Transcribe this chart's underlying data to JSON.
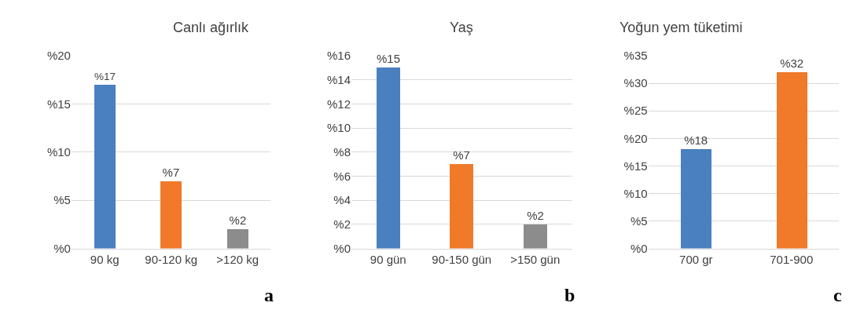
{
  "chart_data": [
    {
      "type": "bar",
      "title": "Canlı ağırlık",
      "categories": [
        "90 kg",
        "90-120 kg",
        ">120 kg"
      ],
      "values": [
        17,
        7,
        2
      ],
      "colors": [
        "#4a7fc0",
        "#f07a2a",
        "#8c8c8c"
      ],
      "value_labels": [
        "%17",
        "%7",
        "%2"
      ],
      "ylim": [
        0,
        20
      ],
      "yticks": [
        {
          "value": 0,
          "label": "%0"
        },
        {
          "value": 5,
          "label": "%5"
        },
        {
          "value": 10,
          "label": "%10"
        },
        {
          "value": 15,
          "label": "%15"
        },
        {
          "value": 20,
          "label": "%20"
        }
      ],
      "grid": "y",
      "annotations": [
        "a"
      ]
    },
    {
      "type": "bar",
      "title": "Yaş",
      "categories": [
        "90 gün",
        "90-150 gün",
        ">150 gün"
      ],
      "values": [
        15,
        7,
        2
      ],
      "colors": [
        "#4a7fc0",
        "#f07a2a",
        "#8c8c8c"
      ],
      "value_labels": [
        "%15",
        "%7",
        "%2"
      ],
      "ylim": [
        0,
        16
      ],
      "yticks": [
        {
          "value": 0,
          "label": "%0"
        },
        {
          "value": 2,
          "label": "%2"
        },
        {
          "value": 4,
          "label": "%4"
        },
        {
          "value": 6,
          "label": "%6"
        },
        {
          "value": 8,
          "label": "%8"
        },
        {
          "value": 10,
          "label": "%10"
        },
        {
          "value": 12,
          "label": "%12"
        },
        {
          "value": 14,
          "label": "%14"
        },
        {
          "value": 16,
          "label": "%16"
        }
      ],
      "grid": "y",
      "annotations": [
        "b"
      ]
    },
    {
      "type": "bar",
      "title": "Yoğun yem tüketimi",
      "categories": [
        "700 gr",
        "701-900"
      ],
      "values": [
        18,
        32
      ],
      "colors": [
        "#4a7fc0",
        "#f07a2a"
      ],
      "value_labels": [
        "%18",
        "%32"
      ],
      "ylim": [
        0,
        35
      ],
      "yticks": [
        {
          "value": 0,
          "label": "%0"
        },
        {
          "value": 5,
          "label": "%5"
        },
        {
          "value": 10,
          "label": "%10"
        },
        {
          "value": 15,
          "label": "%15"
        },
        {
          "value": 20,
          "label": "%20"
        },
        {
          "value": 25,
          "label": "%25"
        },
        {
          "value": 30,
          "label": "%30"
        },
        {
          "value": 35,
          "label": "%35"
        }
      ],
      "grid": "y",
      "annotations": [
        "c"
      ]
    }
  ]
}
